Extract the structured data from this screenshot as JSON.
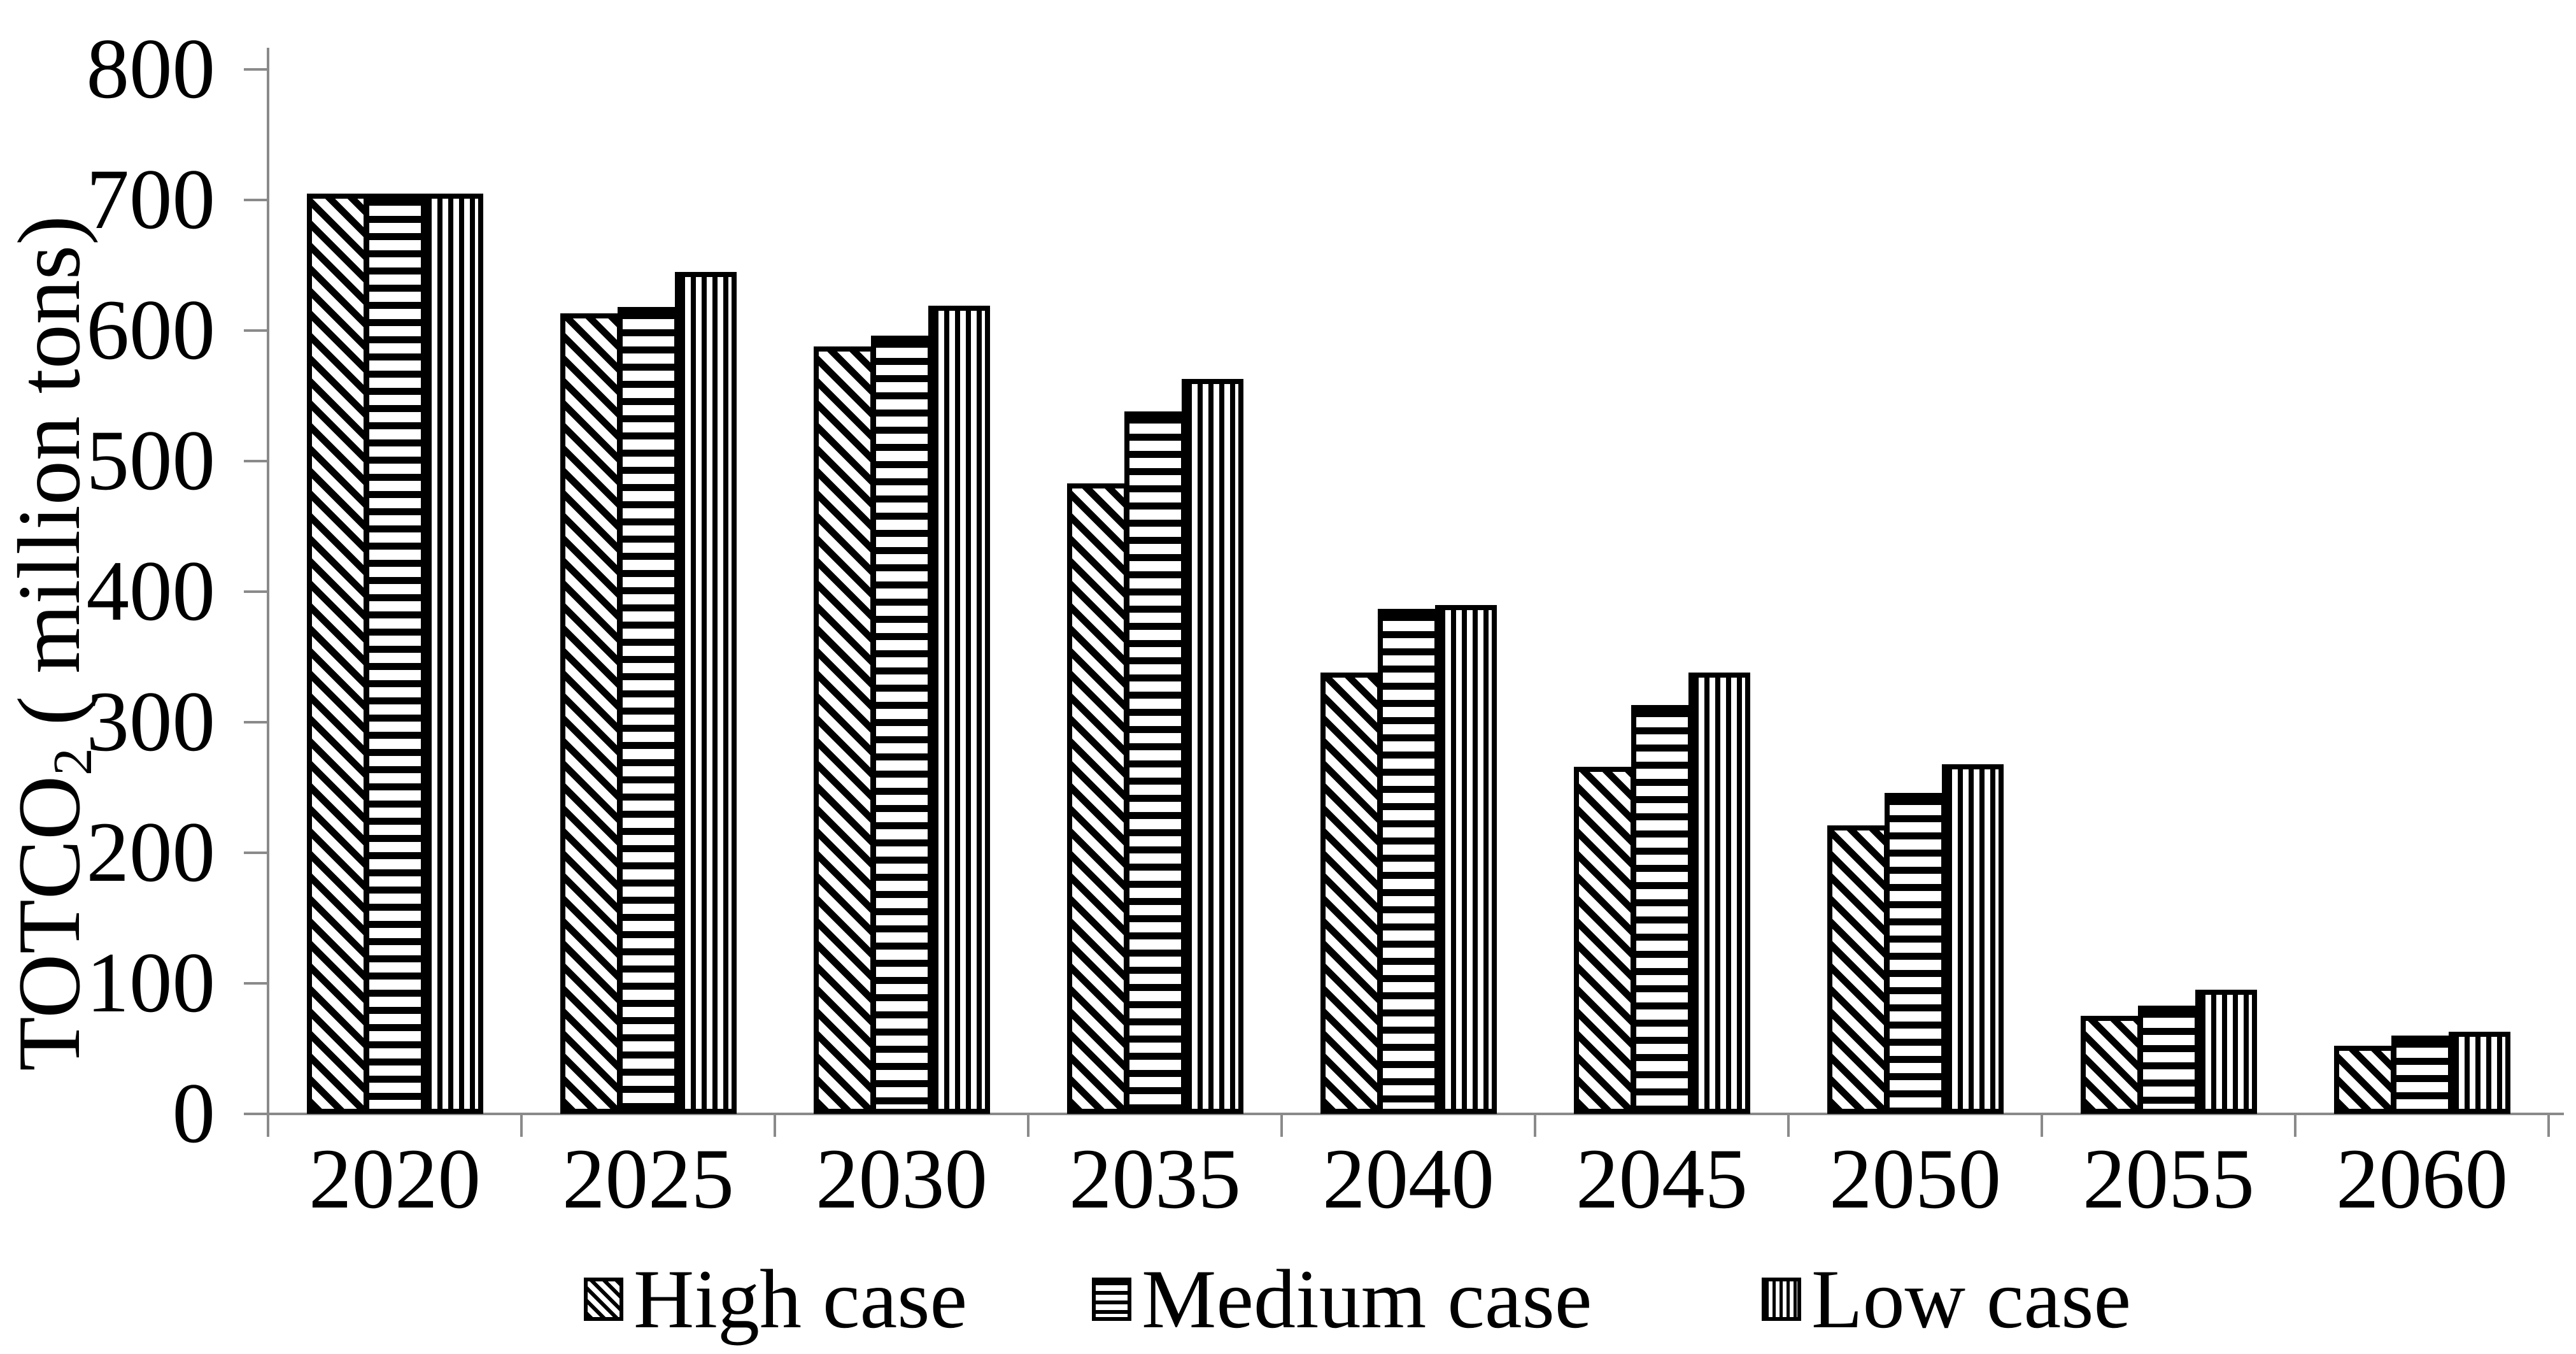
{
  "chart_data": {
    "type": "bar",
    "title": "",
    "ylabel_main": "TOTCO",
    "ylabel_sub": "2",
    "ylabel_rest": " ( million tons)",
    "xlabel": "",
    "categories": [
      "2020",
      "2025",
      "2030",
      "2035",
      "2040",
      "2045",
      "2050",
      "2055",
      "2060"
    ],
    "series": [
      {
        "name": "High case",
        "pattern": "diagonal",
        "values": [
          705,
          613,
          588,
          483,
          338,
          266,
          221,
          75,
          52
        ]
      },
      {
        "name": "Medium case",
        "pattern": "horizontal",
        "values": [
          705,
          618,
          596,
          538,
          387,
          313,
          246,
          83,
          60
        ]
      },
      {
        "name": "Low case",
        "pattern": "vertical",
        "values": [
          705,
          645,
          619,
          563,
          390,
          338,
          268,
          95,
          63
        ]
      }
    ],
    "ylim": [
      0,
      800
    ],
    "yticks": [
      "0",
      "100",
      "200",
      "300",
      "400",
      "500",
      "600",
      "700",
      "800"
    ],
    "grid": false,
    "legend_position": "bottom",
    "colors": {
      "bar_fill": "#ffffff",
      "bar_stroke": "#000000",
      "axis": "#8a8a8a",
      "text": "#000000"
    }
  }
}
